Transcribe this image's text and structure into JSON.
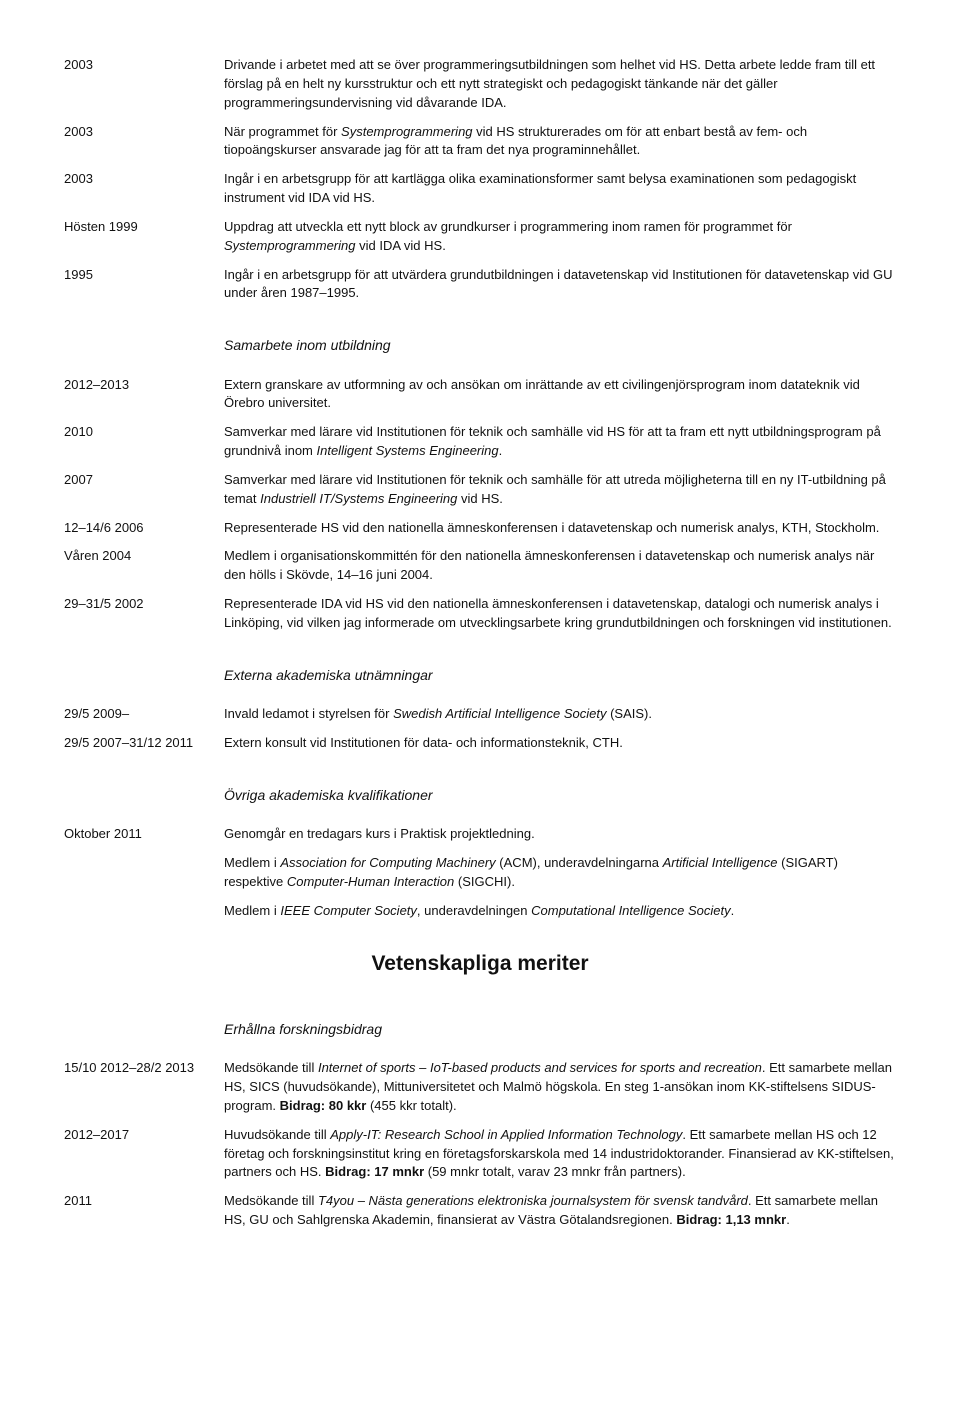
{
  "rows_top": [
    {
      "date": "2003",
      "html": "Drivande i arbetet med att se över programmeringsutbildningen som helhet vid HS. Detta arbete ledde fram till ett förslag på en helt ny kursstruktur och ett nytt strategiskt och pedagogiskt tänkande när det gäller programmeringsundervisning vid dåvarande IDA."
    },
    {
      "date": "2003",
      "html": "När programmet för <em>Systemprogrammering</em> vid HS strukturerades om för att enbart bestå av fem- och tiopoängskurser ansvarade jag för att ta fram det nya programinnehållet."
    },
    {
      "date": "2003",
      "html": "Ingår i en arbetsgrupp för att kartlägga olika examinationsformer samt belysa examinationen som pedagogiskt instrument vid IDA vid HS."
    },
    {
      "date": "Hösten 1999",
      "html": "Uppdrag att utveckla ett nytt block av grundkurser i programmering inom ramen för programmet för <em>Systemprogrammering</em> vid IDA vid HS."
    },
    {
      "date": "1995",
      "html": "Ingår i en arbetsgrupp för att utvärdera grundutbildningen i datavetenskap vid Institutionen för datavetenskap vid GU under åren 1987–1995."
    }
  ],
  "sub1": "Samarbete inom utbildning",
  "rows_sam": [
    {
      "date": "2012–2013",
      "html": "Extern granskare av utformning av och ansökan om inrättande av ett civilingenjörsprogram inom datateknik vid Örebro universitet."
    },
    {
      "date": "2010",
      "html": "Samverkar med lärare vid Institutionen för teknik och samhälle vid HS för att ta fram ett nytt utbildningsprogram på grundnivå inom <em>Intelligent Systems Engineering</em>."
    },
    {
      "date": "2007",
      "html": "Samverkar med lärare vid Institutionen för teknik och samhälle för att utreda möjligheterna till en ny IT-utbildning på temat <em>Industriell IT/Systems Engineering</em> vid HS."
    },
    {
      "date": "12–14/6 2006",
      "html": "Representerade HS vid den nationella ämneskonferensen i datavetenskap och numerisk analys, KTH, Stockholm."
    },
    {
      "date": "Våren 2004",
      "html": "Medlem i organisationskommittén för den nationella ämneskonferensen i datavetenskap och numerisk analys när den hölls i Skövde, 14–16 juni 2004."
    },
    {
      "date": "29–31/5 2002",
      "html": "Representerade IDA vid HS vid den nationella ämneskonferensen i datavetenskap, datalogi och numerisk analys i Linköping, vid vilken jag informerade om utvecklingsarbete kring grundutbildningen och forskningen vid institutionen."
    }
  ],
  "sub2": "Externa akademiska utnämningar",
  "rows_ext": [
    {
      "date": "29/5 2009–",
      "html": "Invald ledamot i styrelsen för <em>Swedish Artificial Intelligence Society</em> (SAIS)."
    },
    {
      "date": "29/5 2007–31/12 2011",
      "html": "Extern konsult vid Institutionen för data- och informationsteknik, CTH."
    }
  ],
  "sub3": "Övriga akademiska kvalifikationer",
  "rows_ovr": [
    {
      "date": "Oktober 2011",
      "html": "Genomgår en tredagars kurs i Praktisk projektledning."
    },
    {
      "date": "",
      "html": "Medlem i <em>Association for Computing Machinery</em> (ACM), underavdelningarna <em>Artificial Intelligence</em> (SIGART) respektive <em>Computer-Human Interaction</em> (SIGCHI)."
    },
    {
      "date": "",
      "html": "Medlem i <em>IEEE Computer Society</em>, underavdelningen <em>Computational Intelligence Society</em>."
    }
  ],
  "main": "Vetenskapliga meriter",
  "sub4": "Erhållna forskningsbidrag",
  "rows_forsk": [
    {
      "date": "15/10 2012–28/2 2013",
      "html": "Medsökande till <em>Internet of sports – IoT-based products and services for sports and recreation</em>. Ett samarbete mellan HS, SICS (huvudsökande), Mittuniversitetet och Malmö högskola. En steg 1-ansökan inom KK-stiftelsens SIDUS-program. <b>Bidrag: 80 kkr</b> (455 kkr totalt)."
    },
    {
      "date": "2012–2017",
      "html": "Huvudsökande till <em>Apply-IT: Research School in Applied Information Technology</em>. Ett samarbete mellan HS och 12 företag och forskningsinstitut kring en företagsforskarskola med 14 industridoktorander. Finansierad av KK-stiftelsen, partners och HS. <b>Bidrag: 17 mnkr</b> (59 mnkr totalt, varav 23 mnkr från partners)."
    },
    {
      "date": "2011",
      "html": "Medsökande till <em>T4you – Nästa generations elektroniska journalsystem för svensk tandvård</em>. Ett samarbete mellan HS, GU och Sahlgrenska Akademin, finansierat av Västra Götalandsregionen. <b>Bidrag: 1,13 mnkr</b>."
    }
  ]
}
